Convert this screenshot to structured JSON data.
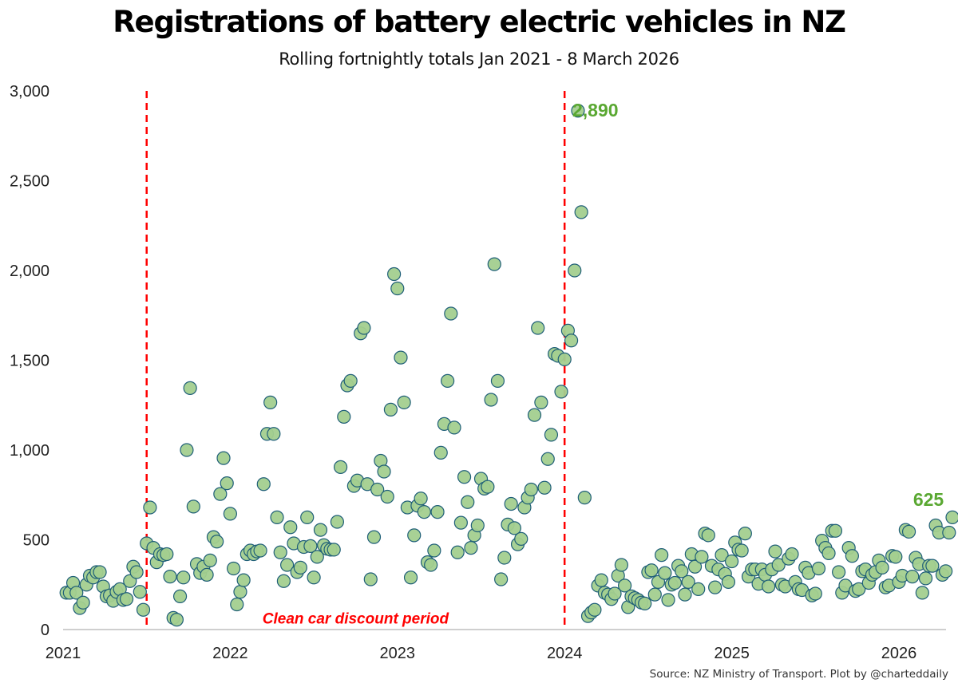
{
  "chart_data": {
    "type": "scatter",
    "title": "Registrations of battery electric vehicles in NZ",
    "subtitle": "Rolling fortnightly totals Jan 2021 - 8 March 2026",
    "xlabel": "",
    "ylabel": "",
    "x_ticks": [
      "2021",
      "2022",
      "2023",
      "2024",
      "2025",
      "2026"
    ],
    "xlim": [
      2021,
      2026.2
    ],
    "ylim": [
      0,
      3000
    ],
    "y_ticks": [
      "0",
      "500",
      "1,000",
      "1,500",
      "2,000",
      "2,500",
      "3,000"
    ],
    "grid": false,
    "colors": {
      "marker_fill": "#a3cf8f",
      "marker_edge": "#1f5f78",
      "reference_line": "#ff0000",
      "highlight_label": "#5aa832"
    },
    "reference_lines": [
      {
        "x": 2021.5,
        "label": ""
      },
      {
        "x": 2024.0,
        "label": ""
      }
    ],
    "period_label": {
      "text": "Clean car discount period",
      "x": 2022.75,
      "y": 65
    },
    "annotations": [
      {
        "text": "2,890",
        "x": 2023.95,
        "y": 2890
      },
      {
        "text": "625",
        "x": 2026.17,
        "y": 625
      }
    ],
    "points": [
      [
        2021.02,
        205
      ],
      [
        2021.04,
        205
      ],
      [
        2021.06,
        260
      ],
      [
        2021.08,
        205
      ],
      [
        2021.1,
        120
      ],
      [
        2021.12,
        150
      ],
      [
        2021.14,
        250
      ],
      [
        2021.16,
        300
      ],
      [
        2021.18,
        290
      ],
      [
        2021.2,
        320
      ],
      [
        2021.22,
        320
      ],
      [
        2021.24,
        240
      ],
      [
        2021.26,
        185
      ],
      [
        2021.28,
        190
      ],
      [
        2021.3,
        160
      ],
      [
        2021.32,
        210
      ],
      [
        2021.34,
        225
      ],
      [
        2021.36,
        165
      ],
      [
        2021.38,
        170
      ],
      [
        2021.4,
        270
      ],
      [
        2021.42,
        350
      ],
      [
        2021.44,
        320
      ],
      [
        2021.46,
        210
      ],
      [
        2021.48,
        110
      ],
      [
        2021.5,
        480
      ],
      [
        2021.52,
        680
      ],
      [
        2021.54,
        455
      ],
      [
        2021.56,
        375
      ],
      [
        2021.58,
        420
      ],
      [
        2021.6,
        415
      ],
      [
        2021.62,
        420
      ],
      [
        2021.64,
        295
      ],
      [
        2021.66,
        65
      ],
      [
        2021.68,
        55
      ],
      [
        2021.7,
        185
      ],
      [
        2021.72,
        290
      ],
      [
        2021.74,
        1000
      ],
      [
        2021.76,
        1345
      ],
      [
        2021.78,
        685
      ],
      [
        2021.8,
        365
      ],
      [
        2021.82,
        315
      ],
      [
        2021.84,
        350
      ],
      [
        2021.86,
        305
      ],
      [
        2021.88,
        385
      ],
      [
        2021.9,
        515
      ],
      [
        2021.92,
        490
      ],
      [
        2021.94,
        755
      ],
      [
        2021.96,
        955
      ],
      [
        2021.98,
        815
      ],
      [
        2022.0,
        645
      ],
      [
        2022.02,
        340
      ],
      [
        2022.04,
        140
      ],
      [
        2022.06,
        210
      ],
      [
        2022.08,
        275
      ],
      [
        2022.1,
        420
      ],
      [
        2022.12,
        440
      ],
      [
        2022.14,
        420
      ],
      [
        2022.16,
        435
      ],
      [
        2022.18,
        440
      ],
      [
        2022.2,
        810
      ],
      [
        2022.22,
        1090
      ],
      [
        2022.24,
        1265
      ],
      [
        2022.26,
        1090
      ],
      [
        2022.28,
        625
      ],
      [
        2022.3,
        430
      ],
      [
        2022.32,
        270
      ],
      [
        2022.34,
        360
      ],
      [
        2022.36,
        570
      ],
      [
        2022.38,
        480
      ],
      [
        2022.4,
        320
      ],
      [
        2022.42,
        345
      ],
      [
        2022.44,
        460
      ],
      [
        2022.46,
        625
      ],
      [
        2022.48,
        465
      ],
      [
        2022.5,
        290
      ],
      [
        2022.52,
        405
      ],
      [
        2022.54,
        555
      ],
      [
        2022.56,
        470
      ],
      [
        2022.58,
        450
      ],
      [
        2022.6,
        445
      ],
      [
        2022.62,
        445
      ],
      [
        2022.64,
        600
      ],
      [
        2022.66,
        905
      ],
      [
        2022.68,
        1185
      ],
      [
        2022.7,
        1360
      ],
      [
        2022.72,
        1385
      ],
      [
        2022.74,
        800
      ],
      [
        2022.76,
        830
      ],
      [
        2022.78,
        1650
      ],
      [
        2022.8,
        1680
      ],
      [
        2022.82,
        810
      ],
      [
        2022.84,
        280
      ],
      [
        2022.86,
        515
      ],
      [
        2022.88,
        780
      ],
      [
        2022.9,
        940
      ],
      [
        2022.92,
        880
      ],
      [
        2022.94,
        740
      ],
      [
        2022.96,
        1225
      ],
      [
        2022.98,
        1980
      ],
      [
        2023.0,
        1900
      ],
      [
        2023.02,
        1515
      ],
      [
        2023.04,
        1265
      ],
      [
        2023.06,
        680
      ],
      [
        2023.08,
        290
      ],
      [
        2023.1,
        525
      ],
      [
        2023.12,
        690
      ],
      [
        2023.14,
        730
      ],
      [
        2023.16,
        655
      ],
      [
        2023.18,
        375
      ],
      [
        2023.2,
        360
      ],
      [
        2023.22,
        440
      ],
      [
        2023.24,
        655
      ],
      [
        2023.26,
        985
      ],
      [
        2023.28,
        1145
      ],
      [
        2023.3,
        1385
      ],
      [
        2023.32,
        1760
      ],
      [
        2023.34,
        1125
      ],
      [
        2023.36,
        430
      ],
      [
        2023.38,
        595
      ],
      [
        2023.4,
        850
      ],
      [
        2023.42,
        710
      ],
      [
        2023.44,
        455
      ],
      [
        2023.46,
        525
      ],
      [
        2023.48,
        580
      ],
      [
        2023.5,
        840
      ],
      [
        2023.52,
        785
      ],
      [
        2023.54,
        795
      ],
      [
        2023.56,
        1280
      ],
      [
        2023.58,
        2035
      ],
      [
        2023.6,
        1385
      ],
      [
        2023.62,
        280
      ],
      [
        2023.64,
        400
      ],
      [
        2023.66,
        585
      ],
      [
        2023.68,
        700
      ],
      [
        2023.7,
        565
      ],
      [
        2023.72,
        475
      ],
      [
        2023.74,
        505
      ],
      [
        2023.76,
        680
      ],
      [
        2023.78,
        735
      ],
      [
        2023.8,
        780
      ],
      [
        2023.82,
        1195
      ],
      [
        2023.84,
        1680
      ],
      [
        2023.86,
        1265
      ],
      [
        2023.88,
        790
      ],
      [
        2023.9,
        950
      ],
      [
        2023.92,
        1085
      ],
      [
        2023.94,
        1535
      ],
      [
        2023.96,
        1525
      ],
      [
        2023.98,
        1325
      ],
      [
        2024.0,
        1505
      ],
      [
        2024.02,
        1665
      ],
      [
        2024.04,
        1610
      ],
      [
        2024.06,
        2000
      ],
      [
        2024.08,
        2890
      ],
      [
        2024.1,
        2325
      ],
      [
        2024.12,
        735
      ],
      [
        2024.14,
        75
      ],
      [
        2024.16,
        95
      ],
      [
        2024.18,
        110
      ],
      [
        2024.2,
        245
      ],
      [
        2024.22,
        275
      ],
      [
        2024.24,
        205
      ],
      [
        2024.26,
        195
      ],
      [
        2024.28,
        170
      ],
      [
        2024.3,
        200
      ],
      [
        2024.32,
        300
      ],
      [
        2024.34,
        360
      ],
      [
        2024.36,
        245
      ],
      [
        2024.38,
        125
      ],
      [
        2024.4,
        185
      ],
      [
        2024.42,
        175
      ],
      [
        2024.44,
        165
      ],
      [
        2024.46,
        150
      ],
      [
        2024.48,
        145
      ],
      [
        2024.5,
        320
      ],
      [
        2024.52,
        330
      ],
      [
        2024.54,
        195
      ],
      [
        2024.56,
        265
      ],
      [
        2024.58,
        415
      ],
      [
        2024.6,
        315
      ],
      [
        2024.62,
        165
      ],
      [
        2024.64,
        250
      ],
      [
        2024.66,
        260
      ],
      [
        2024.68,
        355
      ],
      [
        2024.7,
        325
      ],
      [
        2024.72,
        195
      ],
      [
        2024.74,
        265
      ],
      [
        2024.76,
        420
      ],
      [
        2024.78,
        350
      ],
      [
        2024.8,
        225
      ],
      [
        2024.82,
        405
      ],
      [
        2024.84,
        535
      ],
      [
        2024.86,
        525
      ],
      [
        2024.88,
        355
      ],
      [
        2024.9,
        235
      ],
      [
        2024.92,
        335
      ],
      [
        2024.94,
        415
      ],
      [
        2024.96,
        310
      ],
      [
        2024.98,
        265
      ],
      [
        2025.0,
        380
      ],
      [
        2025.02,
        485
      ],
      [
        2025.04,
        445
      ],
      [
        2025.06,
        440
      ],
      [
        2025.08,
        535
      ],
      [
        2025.1,
        295
      ],
      [
        2025.12,
        335
      ],
      [
        2025.14,
        335
      ],
      [
        2025.16,
        255
      ],
      [
        2025.18,
        335
      ],
      [
        2025.2,
        305
      ],
      [
        2025.22,
        240
      ],
      [
        2025.24,
        335
      ],
      [
        2025.26,
        435
      ],
      [
        2025.28,
        360
      ],
      [
        2025.3,
        250
      ],
      [
        2025.32,
        240
      ],
      [
        2025.34,
        395
      ],
      [
        2025.36,
        420
      ],
      [
        2025.38,
        265
      ],
      [
        2025.4,
        225
      ],
      [
        2025.42,
        220
      ],
      [
        2025.44,
        345
      ],
      [
        2025.46,
        315
      ],
      [
        2025.48,
        190
      ],
      [
        2025.5,
        200
      ],
      [
        2025.52,
        340
      ],
      [
        2025.54,
        495
      ],
      [
        2025.56,
        455
      ],
      [
        2025.58,
        425
      ],
      [
        2025.6,
        550
      ],
      [
        2025.62,
        550
      ],
      [
        2025.64,
        320
      ],
      [
        2025.66,
        205
      ],
      [
        2025.68,
        245
      ],
      [
        2025.7,
        455
      ],
      [
        2025.72,
        410
      ],
      [
        2025.74,
        215
      ],
      [
        2025.76,
        225
      ],
      [
        2025.78,
        325
      ],
      [
        2025.8,
        335
      ],
      [
        2025.82,
        260
      ],
      [
        2025.84,
        305
      ],
      [
        2025.86,
        320
      ],
      [
        2025.88,
        385
      ],
      [
        2025.9,
        345
      ],
      [
        2025.92,
        235
      ],
      [
        2025.94,
        245
      ],
      [
        2025.96,
        410
      ],
      [
        2025.98,
        405
      ],
      [
        2026.0,
        265
      ],
      [
        2026.02,
        300
      ],
      [
        2026.04,
        555
      ],
      [
        2026.06,
        545
      ],
      [
        2026.08,
        295
      ],
      [
        2026.1,
        400
      ],
      [
        2026.12,
        365
      ],
      [
        2026.14,
        205
      ],
      [
        2026.16,
        285
      ],
      [
        2026.18,
        355
      ],
      [
        2026.2,
        355
      ],
      [
        2026.22,
        580
      ],
      [
        2026.24,
        540
      ],
      [
        2026.26,
        305
      ],
      [
        2026.28,
        325
      ],
      [
        2026.3,
        540
      ],
      [
        2026.32,
        625
      ]
    ]
  },
  "source": "Source: NZ Ministry of Transport. Plot by @charteddaily"
}
